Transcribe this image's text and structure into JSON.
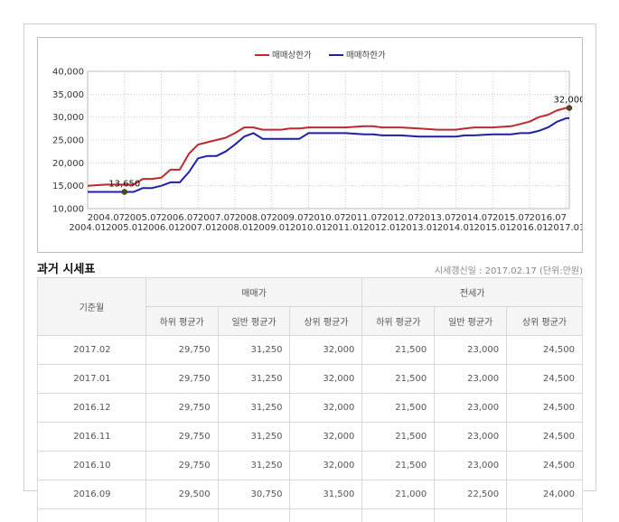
{
  "chart_data": {
    "type": "line",
    "legend": [
      "매매상한가",
      "매매하한가"
    ],
    "legend_position": "top-center",
    "grid": true,
    "ylim": [
      10000,
      40000
    ],
    "yticks": [
      "10,000",
      "15,000",
      "20,000",
      "25,000",
      "30,000",
      "35,000",
      "40,000"
    ],
    "xticks_top": [
      "2004.07",
      "2005.07",
      "2006.07",
      "2007.07",
      "2008.07",
      "2009.07",
      "2010.07",
      "2011.07",
      "2012.07",
      "2013.07",
      "2014.07",
      "2015.07",
      "2016.07"
    ],
    "xticks_bottom": [
      "2004.01",
      "2005.01",
      "2006.01",
      "2007.01",
      "2008.01",
      "2009.01",
      "2010.01",
      "2011.01",
      "2012.01",
      "2013.01",
      "2014.01",
      "2015.01",
      "2016.01",
      "2017.01"
    ],
    "x": [
      2004.0,
      2004.5,
      2005.0,
      2005.25,
      2005.5,
      2005.75,
      2006.0,
      2006.25,
      2006.5,
      2006.75,
      2007.0,
      2007.25,
      2007.5,
      2007.75,
      2008.0,
      2008.25,
      2008.5,
      2008.75,
      2009.0,
      2009.25,
      2009.5,
      2009.75,
      2010.0,
      2010.25,
      2010.5,
      2011.0,
      2011.5,
      2011.75,
      2012.0,
      2012.5,
      2013.0,
      2013.5,
      2014.0,
      2014.25,
      2014.5,
      2015.0,
      2015.5,
      2015.75,
      2016.0,
      2016.25,
      2016.5,
      2016.75,
      2017.0,
      2017.08
    ],
    "series": [
      {
        "name": "매매상한가",
        "color": "#c0282d",
        "values": [
          15000,
          15250,
          15250,
          15250,
          16500,
          16500,
          16750,
          18500,
          18500,
          22000,
          24000,
          24500,
          25000,
          25500,
          26500,
          27750,
          27750,
          27250,
          27250,
          27250,
          27500,
          27500,
          27750,
          27750,
          27750,
          27750,
          28000,
          28000,
          27750,
          27750,
          27500,
          27250,
          27250,
          27500,
          27750,
          27750,
          28000,
          28500,
          29000,
          30000,
          30500,
          31500,
          32000,
          32000
        ]
      },
      {
        "name": "매매하한가",
        "color": "#1f1fa8",
        "values": [
          13650,
          13650,
          13650,
          13650,
          14500,
          14500,
          15000,
          15750,
          15750,
          18000,
          21000,
          21500,
          21500,
          22500,
          24000,
          25750,
          26500,
          25250,
          25250,
          25250,
          25250,
          25250,
          26500,
          26500,
          26500,
          26500,
          26250,
          26250,
          26000,
          26000,
          25750,
          25750,
          25750,
          26000,
          26000,
          26250,
          26250,
          26500,
          26500,
          27000,
          27750,
          29000,
          29750,
          29750
        ]
      }
    ],
    "annotations": [
      {
        "text": "13,650",
        "x": 2005.0,
        "y": 13650
      },
      {
        "text": "32,000",
        "x": 2017.08,
        "y": 32000
      }
    ]
  },
  "table": {
    "title": "과거 시세표",
    "update_note": "시세갱신일 : 2017.02.17 (단위:만원)",
    "col_date": "기준월",
    "group_sale": "매매가",
    "group_jeonse": "전세가",
    "subheaders": [
      "하위 평균가",
      "일반 평균가",
      "상위 평균가",
      "하위 평균가",
      "일반 평균가",
      "상위 평균가"
    ],
    "rows": [
      {
        "date": "2017.02",
        "v": [
          "29,750",
          "31,250",
          "32,000",
          "21,500",
          "23,000",
          "24,500"
        ]
      },
      {
        "date": "2017.01",
        "v": [
          "29,750",
          "31,250",
          "32,000",
          "21,500",
          "23,000",
          "24,500"
        ]
      },
      {
        "date": "2016.12",
        "v": [
          "29,750",
          "31,250",
          "32,000",
          "21,500",
          "23,000",
          "24,500"
        ]
      },
      {
        "date": "2016.11",
        "v": [
          "29,750",
          "31,250",
          "32,000",
          "21,500",
          "23,000",
          "24,500"
        ]
      },
      {
        "date": "2016.10",
        "v": [
          "29,750",
          "31,250",
          "32,000",
          "21,500",
          "23,000",
          "24,500"
        ]
      },
      {
        "date": "2016.09",
        "v": [
          "29,500",
          "30,750",
          "31,500",
          "21,000",
          "22,500",
          "24,000"
        ]
      }
    ]
  }
}
